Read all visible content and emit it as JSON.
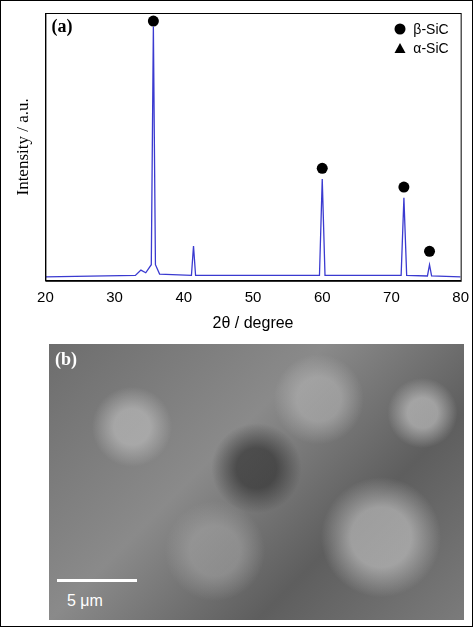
{
  "chart_data": {
    "type": "line",
    "panel_label": "(a)",
    "x_label": "2θ / degree",
    "y_label": "Intensity / a.u.",
    "xlim": [
      20,
      80
    ],
    "xticks": [
      20,
      30,
      40,
      50,
      60,
      70,
      80
    ],
    "ylim": [
      0,
      100
    ],
    "tick_labels": "x",
    "grid": false,
    "legend": "upper right",
    "series": [
      {
        "type": "line",
        "color": "#3a3ad0",
        "x": [
          20,
          33,
          33.8,
          34.5,
          35.3,
          35.6,
          35.9,
          36.5,
          41.1,
          41.4,
          41.7,
          59.6,
          60.0,
          60.4,
          71.4,
          71.8,
          72.2,
          75.2,
          75.5,
          75.8,
          80
        ],
        "values": [
          1.5,
          2,
          4,
          3,
          6,
          95,
          6,
          2.5,
          2,
          13,
          2,
          2,
          38,
          2,
          2,
          31,
          2,
          1.8,
          6,
          1.8,
          1.5
        ]
      },
      {
        "name": "β-SiC",
        "type": "scatter",
        "marker": "circle",
        "color": "#000000",
        "x": [
          35.6,
          60.0,
          71.8,
          75.5
        ],
        "values": [
          97,
          42,
          35,
          11
        ]
      },
      {
        "name": "α-SiC",
        "type": "scatter",
        "marker": "triangle",
        "color": "#000000",
        "x": [],
        "values": []
      }
    ]
  },
  "image": {
    "panel_label": "(b)",
    "scale_bar": "5 μm"
  }
}
